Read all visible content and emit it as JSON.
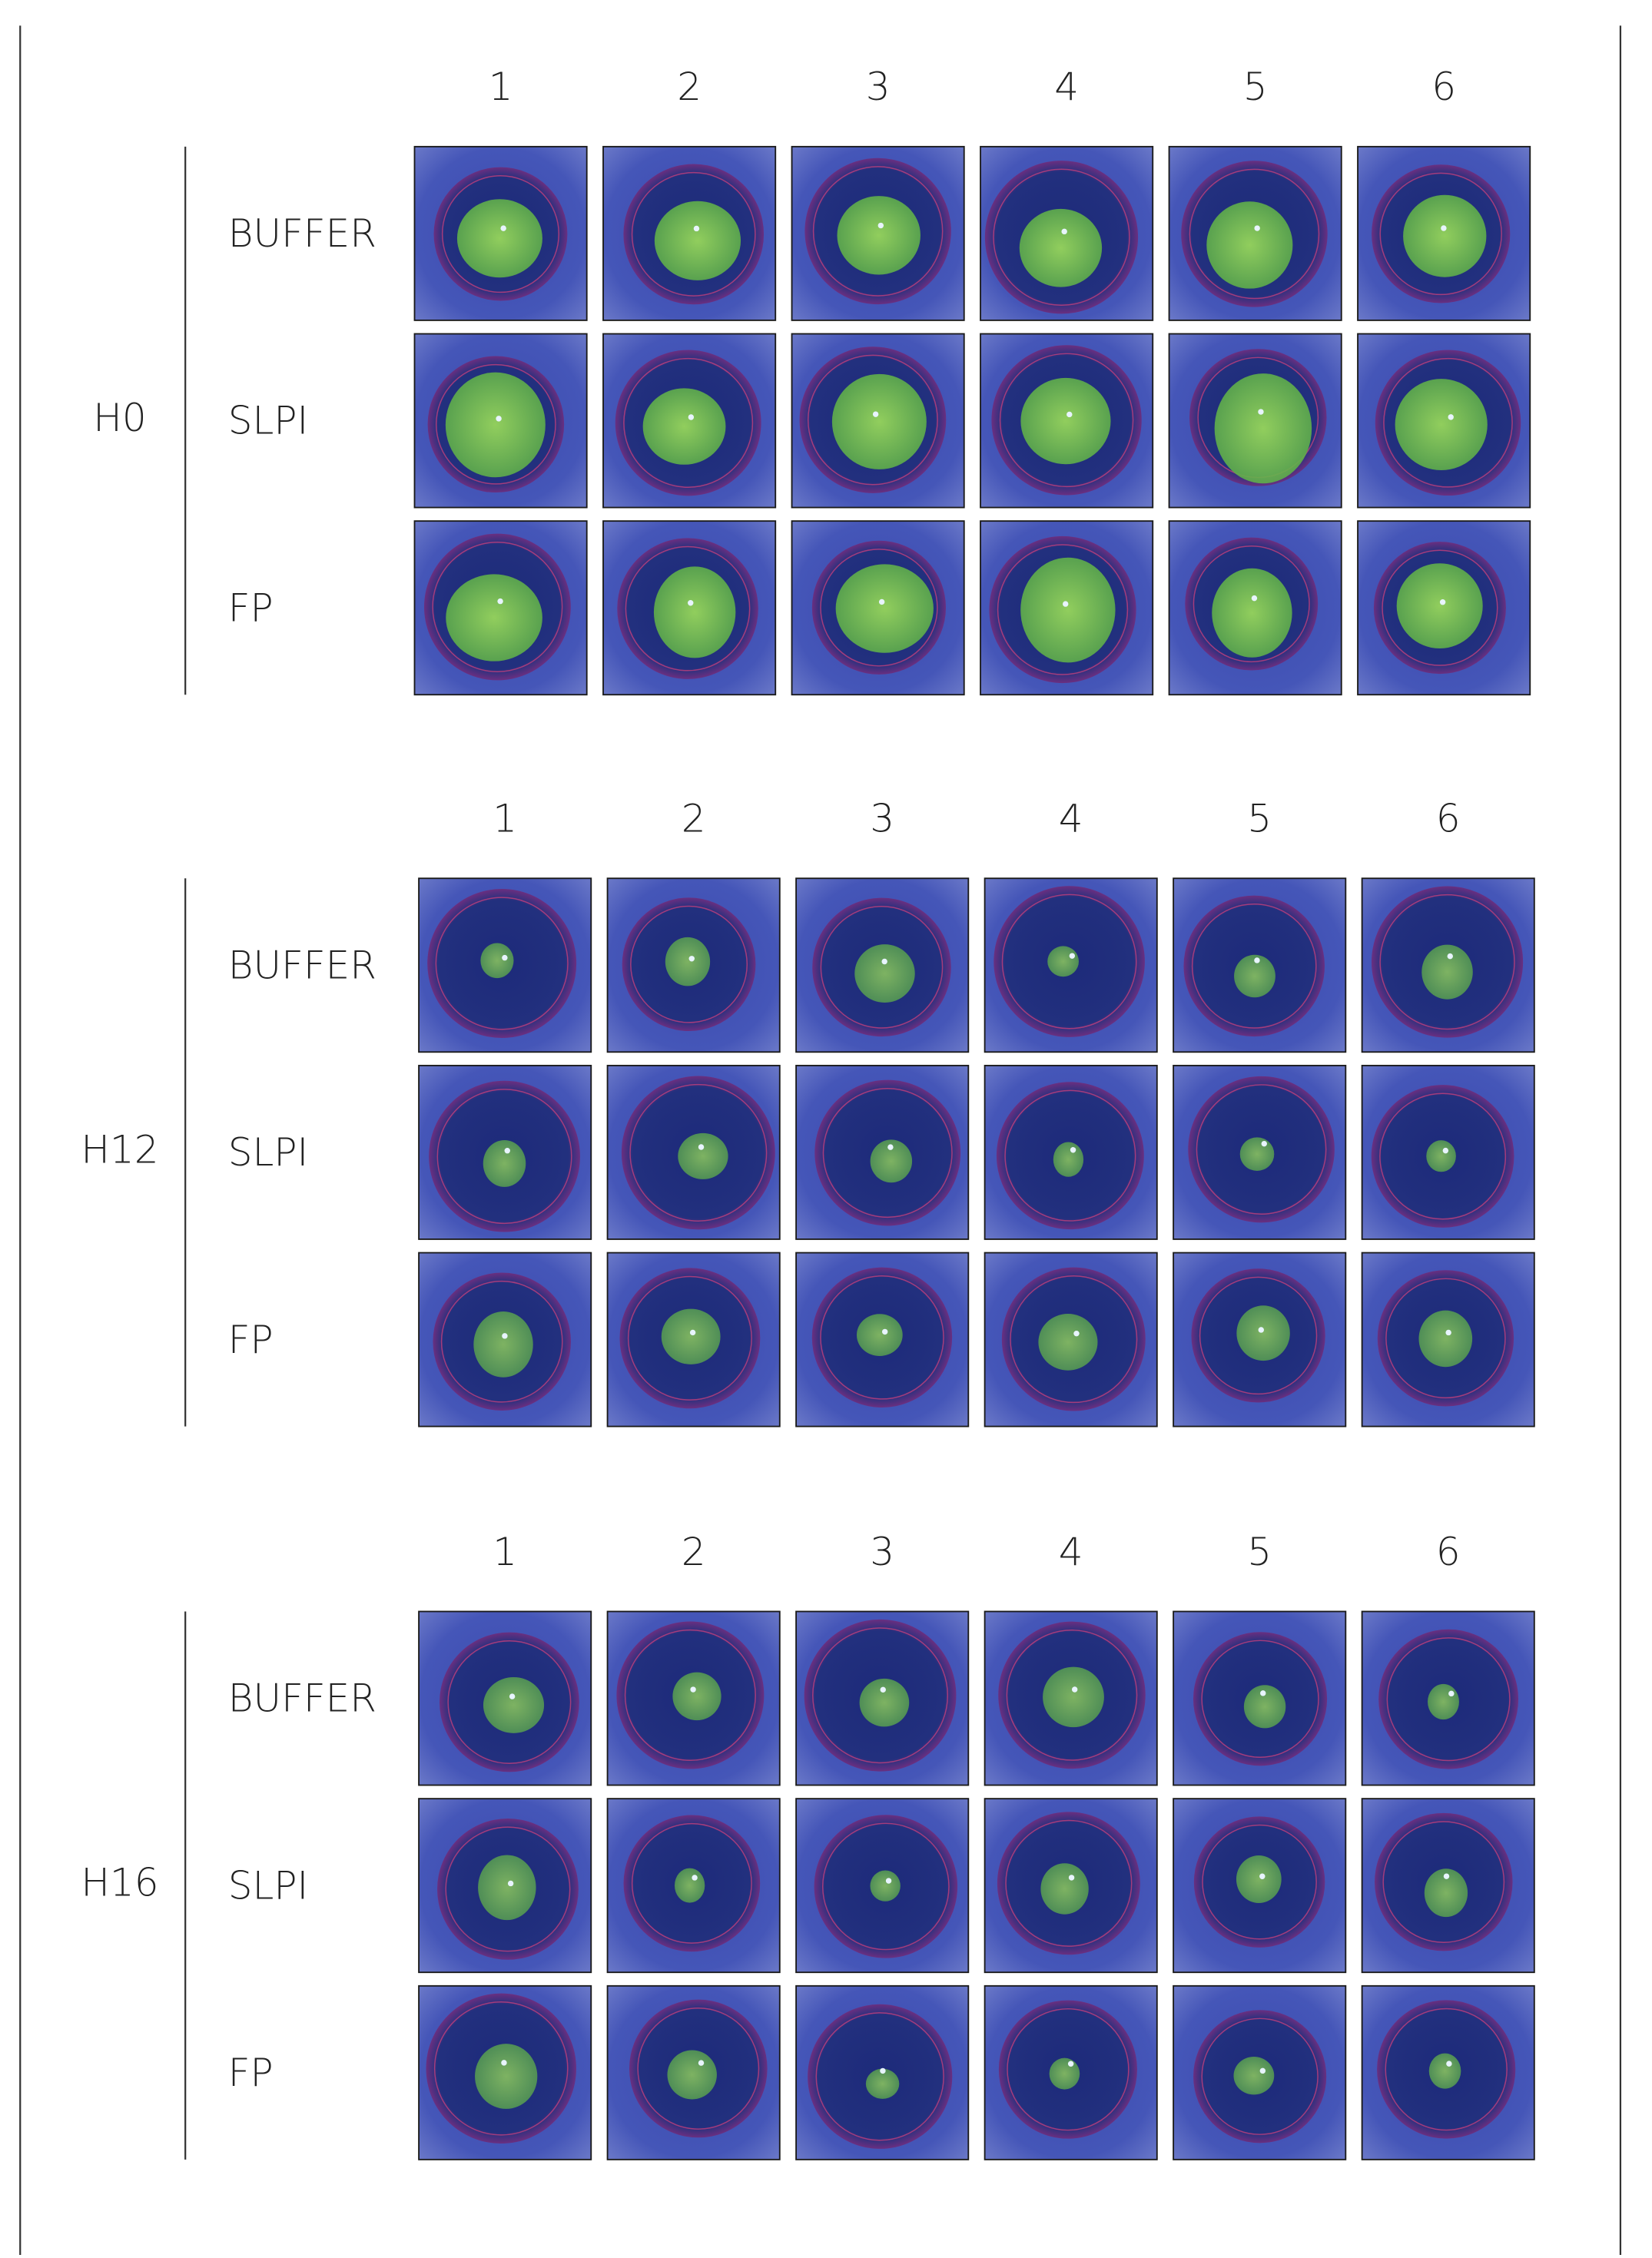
{
  "groups": [
    {
      "label": "H0",
      "columns": [
        "1",
        "2",
        "3",
        "4",
        "5",
        "6"
      ],
      "rows": [
        "BUFFER",
        "SLPI",
        "FP"
      ]
    },
    {
      "label": "H12",
      "columns": [
        "1",
        "2",
        "3",
        "4",
        "5",
        "6"
      ],
      "rows": [
        "BUFFER",
        "SLPI",
        "FP"
      ]
    },
    {
      "label": "H16",
      "columns": [
        "1",
        "2",
        "3",
        "4",
        "5",
        "6"
      ],
      "rows": [
        "BUFFER",
        "SLPI",
        "FP"
      ]
    }
  ]
}
